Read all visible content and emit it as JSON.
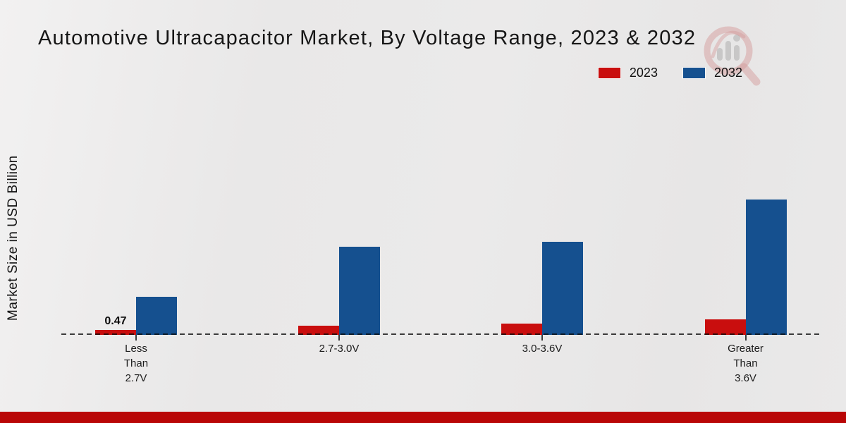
{
  "page": {
    "title": "Automotive Ultracapacitor Market, By Voltage Range, 2023 & 2032",
    "y_axis_label": "Market Size in USD Billion"
  },
  "legend": {
    "items": [
      {
        "label": "2023",
        "color": "#c90e0e"
      },
      {
        "label": "2032",
        "color": "#15508f"
      }
    ]
  },
  "colors": {
    "series_2023": "#c90e0e",
    "series_2032": "#15508f",
    "bottom_band": "#b90606",
    "baseline": "#0a0a0a",
    "text": "#1a1a1a"
  },
  "watermark_icon": "magnifier-bar-chart-logo",
  "chart_data": {
    "type": "bar",
    "title": "Automotive Ultracapacitor Market, By Voltage Range, 2023 & 2032",
    "xlabel": "",
    "ylabel": "Market Size in USD Billion",
    "categories": [
      "Less Than 2.7V",
      "2.7-3.0V",
      "3.0-3.6V",
      "Greater Than 3.6V"
    ],
    "category_tick_labels": [
      "Less\nThan\n2.7V",
      "2.7-3.0V",
      "3.0-3.6V",
      "Greater\nThan\n3.6V"
    ],
    "series": [
      {
        "name": "2023",
        "color": "#c90e0e",
        "values": [
          0.47,
          0.9,
          1.1,
          1.55
        ]
      },
      {
        "name": "2032",
        "color": "#15508f",
        "values": [
          3.8,
          8.8,
          9.25,
          13.5
        ]
      }
    ],
    "annotations": [
      {
        "series": "2023",
        "category": "Less Than 2.7V",
        "text": "0.47"
      }
    ],
    "ylim": [
      0,
      14.5
    ],
    "grid": false,
    "y_axis_ticks_visible": false,
    "baseline_style": "dashed",
    "legend_position": "top-right"
  }
}
